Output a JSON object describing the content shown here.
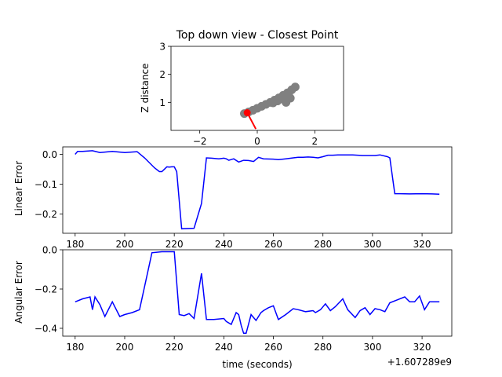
{
  "chart_data": [
    {
      "type": "scatter",
      "title": "Top down view - Closest Point",
      "xlabel": "",
      "ylabel": "Z distance",
      "xlim": [
        -3,
        3
      ],
      "ylim": [
        0,
        3
      ],
      "xticks": [
        "−2",
        "0",
        "2"
      ],
      "yticks": [
        "1",
        "2",
        "3"
      ],
      "colors": {
        "trail": "#808080",
        "current": "#ff0000",
        "heading": "#ff0000"
      },
      "trail": [
        [
          -0.45,
          0.6
        ],
        [
          -0.3,
          0.66
        ],
        [
          -0.15,
          0.72
        ],
        [
          0.0,
          0.79
        ],
        [
          0.15,
          0.86
        ],
        [
          0.3,
          0.93
        ],
        [
          0.45,
          1.0
        ],
        [
          0.6,
          1.08
        ],
        [
          0.75,
          1.16
        ],
        [
          0.9,
          1.25
        ],
        [
          1.05,
          1.34
        ],
        [
          1.2,
          1.45
        ],
        [
          1.32,
          1.55
        ],
        [
          1.1,
          1.35
        ],
        [
          0.95,
          1.1
        ],
        [
          1.0,
          1.0
        ],
        [
          1.15,
          1.15
        ],
        [
          0.85,
          1.12
        ],
        [
          0.7,
          1.05
        ],
        [
          0.55,
          0.98
        ]
      ],
      "current_point": [
        -0.35,
        0.63
      ],
      "heading_end": [
        -0.05,
        0.05
      ]
    },
    {
      "type": "line",
      "title": "",
      "xlabel": "",
      "ylabel": "Linear Error",
      "xlim": [
        175,
        332
      ],
      "ylim": [
        -0.265,
        0.025
      ],
      "xticks": [
        "180",
        "200",
        "220",
        "240",
        "260",
        "280",
        "300",
        "320"
      ],
      "yticks": [
        "0.0",
        "−0.1",
        "−0.2"
      ],
      "color": "#0000ff",
      "x": [
        180,
        181,
        183,
        187,
        190,
        195,
        200,
        205,
        208,
        212,
        214,
        215,
        217,
        218,
        219,
        220,
        221,
        223,
        228,
        231,
        233,
        235,
        238,
        240,
        241,
        242,
        244,
        246,
        248,
        250,
        252,
        254,
        256,
        260,
        262,
        265,
        268,
        270,
        272,
        274,
        276,
        278,
        280,
        282,
        284,
        286,
        288,
        292,
        294,
        296,
        298,
        301,
        303,
        306,
        307,
        309,
        311,
        315,
        320,
        324,
        327
      ],
      "y": [
        0.0,
        0.01,
        0.01,
        0.012,
        0.006,
        0.01,
        0.006,
        0.009,
        -0.012,
        -0.045,
        -0.058,
        -0.058,
        -0.042,
        -0.043,
        -0.042,
        -0.042,
        -0.058,
        -0.25,
        -0.248,
        -0.165,
        -0.012,
        -0.013,
        -0.015,
        -0.013,
        -0.015,
        -0.02,
        -0.015,
        -0.026,
        -0.02,
        -0.021,
        -0.024,
        -0.01,
        -0.015,
        -0.016,
        -0.018,
        -0.015,
        -0.012,
        -0.01,
        -0.01,
        -0.009,
        -0.01,
        -0.012,
        -0.008,
        -0.003,
        -0.003,
        -0.002,
        -0.002,
        -0.002,
        -0.003,
        -0.004,
        -0.004,
        -0.004,
        -0.002,
        -0.008,
        -0.012,
        -0.132,
        -0.132,
        -0.133,
        -0.132,
        -0.133,
        -0.134
      ]
    },
    {
      "type": "line",
      "title": "",
      "xlabel": "time (seconds)",
      "ylabel": "Angular Error",
      "xlim": [
        175,
        332
      ],
      "ylim": [
        -0.44,
        0.0
      ],
      "xticks": [
        "180",
        "200",
        "220",
        "240",
        "260",
        "280",
        "300",
        "320"
      ],
      "yticks": [
        "0.0",
        "−0.2",
        "−0.4"
      ],
      "offset_text": "+1.607289e9",
      "color": "#0000ff",
      "x": [
        180,
        183,
        186,
        187,
        188,
        190,
        192,
        195,
        198,
        200,
        203,
        206,
        211,
        215,
        220,
        222,
        224,
        226,
        228,
        231,
        233,
        236,
        240,
        241,
        243,
        245,
        246,
        247,
        248,
        249,
        251,
        253,
        255,
        256,
        258,
        260,
        262,
        265,
        268,
        270,
        273,
        276,
        277,
        279,
        281,
        283,
        285,
        288,
        290,
        293,
        295,
        297,
        299,
        301,
        303,
        305,
        307,
        310,
        313,
        315,
        317,
        319,
        321,
        323,
        327
      ],
      "y": [
        -0.265,
        -0.25,
        -0.24,
        -0.305,
        -0.24,
        -0.28,
        -0.34,
        -0.265,
        -0.34,
        -0.33,
        -0.32,
        -0.305,
        -0.015,
        -0.01,
        -0.01,
        -0.33,
        -0.335,
        -0.325,
        -0.35,
        -0.12,
        -0.355,
        -0.355,
        -0.35,
        -0.365,
        -0.38,
        -0.32,
        -0.33,
        -0.385,
        -0.425,
        -0.425,
        -0.33,
        -0.36,
        -0.32,
        -0.31,
        -0.295,
        -0.285,
        -0.355,
        -0.33,
        -0.3,
        -0.305,
        -0.315,
        -0.31,
        -0.32,
        -0.305,
        -0.275,
        -0.31,
        -0.29,
        -0.25,
        -0.305,
        -0.345,
        -0.31,
        -0.295,
        -0.33,
        -0.3,
        -0.305,
        -0.315,
        -0.27,
        -0.255,
        -0.24,
        -0.265,
        -0.265,
        -0.235,
        -0.305,
        -0.265,
        -0.265
      ]
    }
  ]
}
